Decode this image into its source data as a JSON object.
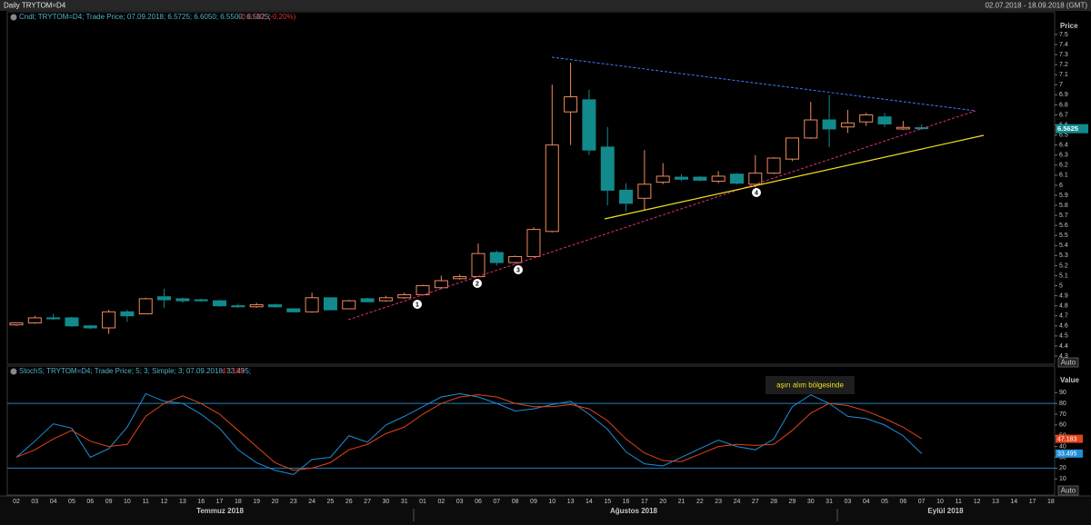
{
  "header": {
    "title": "Daily TRYTOM=D4",
    "range": "02.07.2018 - 18.09.2018 (GMT)"
  },
  "chart_data": [
    {
      "type": "candlestick",
      "legend": "Cndl; TRYTOM=D4; Trade Price; 07.09.2018; 6.5725; 6.6050; 6.5500; 6.5625;",
      "legend_change": "-0.0130; (-0.20%)",
      "y_title": "Price",
      "axis_button": "Auto",
      "months": [
        "Temmuz 2018",
        "Ağustos 2018",
        "Eylül 2018"
      ],
      "markers": [
        1,
        2,
        3,
        4
      ],
      "categories": [
        "02",
        "03",
        "04",
        "05",
        "06",
        "09",
        "10",
        "11",
        "12",
        "13",
        "16",
        "17",
        "18",
        "19",
        "20",
        "23",
        "24",
        "25",
        "26",
        "27",
        "30",
        "31",
        "01",
        "02",
        "03",
        "06",
        "07",
        "08",
        "09",
        "10",
        "13",
        "14",
        "15",
        "16",
        "17",
        "20",
        "21",
        "22",
        "23",
        "24",
        "27",
        "28",
        "29",
        "30",
        "31",
        "03",
        "04",
        "05",
        "06",
        "07",
        "10",
        "11",
        "12",
        "13",
        "14",
        "17",
        "18"
      ],
      "open": [
        4.61,
        4.63,
        4.68,
        4.68,
        4.6,
        4.58,
        4.74,
        4.72,
        4.89,
        4.87,
        4.86,
        4.85,
        4.8,
        4.79,
        4.81,
        4.77,
        4.74,
        4.88,
        4.77,
        4.87,
        4.85,
        4.88,
        4.91,
        4.98,
        5.07,
        5.09,
        5.33,
        5.23,
        5.29,
        5.54,
        6.73,
        6.85,
        6.38,
        5.95,
        5.87,
        6.03,
        6.08,
        6.08,
        6.04,
        6.11,
        6.01,
        6.12,
        6.26,
        6.47,
        6.65,
        6.58,
        6.63,
        6.68,
        6.56,
        6.5725,
        null,
        null,
        null,
        null,
        null,
        null,
        null
      ],
      "high": [
        4.63,
        4.7,
        4.72,
        4.69,
        4.61,
        4.76,
        4.76,
        4.88,
        4.97,
        4.88,
        4.87,
        4.86,
        4.82,
        4.83,
        4.82,
        4.77,
        4.93,
        4.88,
        4.86,
        4.88,
        4.9,
        4.93,
        5.01,
        5.1,
        5.11,
        5.42,
        5.35,
        5.3,
        5.58,
        7.0,
        7.22,
        6.95,
        6.58,
        6.02,
        6.35,
        6.22,
        6.11,
        6.09,
        6.14,
        6.12,
        6.3,
        6.28,
        6.47,
        6.83,
        6.9,
        6.75,
        6.72,
        6.72,
        6.64,
        6.605,
        null,
        null,
        null,
        null,
        null,
        null,
        null
      ],
      "low": [
        4.6,
        4.62,
        4.66,
        4.59,
        4.57,
        4.52,
        4.64,
        4.72,
        4.78,
        4.83,
        4.84,
        4.79,
        4.78,
        4.78,
        4.78,
        4.74,
        4.73,
        4.76,
        4.77,
        4.84,
        4.84,
        4.87,
        4.9,
        4.97,
        5.06,
        5.09,
        5.2,
        5.22,
        5.29,
        5.53,
        6.4,
        6.3,
        5.8,
        5.74,
        5.75,
        6.01,
        6.04,
        6.04,
        6.02,
        6.01,
        5.98,
        6.11,
        6.24,
        6.46,
        6.38,
        6.52,
        6.59,
        6.58,
        6.55,
        6.55,
        null,
        null,
        null,
        null,
        null,
        null,
        null
      ],
      "close": [
        4.63,
        4.68,
        4.67,
        4.6,
        4.58,
        4.74,
        4.7,
        4.87,
        4.86,
        4.85,
        4.85,
        4.8,
        4.79,
        4.81,
        4.79,
        4.74,
        4.88,
        4.76,
        4.85,
        4.84,
        4.88,
        4.91,
        5.0,
        5.05,
        5.09,
        5.32,
        5.23,
        5.29,
        5.56,
        6.4,
        6.88,
        6.35,
        5.95,
        5.82,
        6.01,
        6.09,
        6.06,
        6.05,
        6.09,
        6.02,
        6.12,
        6.27,
        6.47,
        6.65,
        6.56,
        6.62,
        6.7,
        6.61,
        6.5755,
        6.5625,
        null,
        null,
        null,
        null,
        null,
        null,
        null
      ],
      "up_color": "#f08a5d",
      "down_color": "#128a8c",
      "ylim": [
        4.25,
        7.64
      ],
      "yticks": [
        4.3,
        4.4,
        4.5,
        4.6,
        4.7,
        4.8,
        4.9,
        5,
        5.1,
        5.2,
        5.3,
        5.4,
        5.5,
        5.6,
        5.7,
        5.8,
        5.9,
        6,
        6.1,
        6.2,
        6.3,
        6.4,
        6.5,
        6.6,
        6.7,
        6.8,
        6.9,
        7,
        7.1,
        7.2,
        7.3,
        7.4,
        7.5
      ],
      "grid": false
    },
    {
      "type": "line",
      "legend": "StochS; TRYTOM=D4; Trade Price; 5; 3; Simple; 3; 07.09.2018; 33.495;",
      "legend_last": "47.183",
      "y_title": "Value",
      "axis_button": "Auto",
      "annotation": "aşırı alım bölgesinde",
      "series": [
        {
          "color": "#1f8fd8",
          "values": [
            30,
            45,
            61,
            57,
            30,
            38,
            58,
            89,
            82,
            80,
            70,
            57,
            37,
            25,
            18,
            14,
            28,
            30,
            50,
            44,
            60,
            68,
            77,
            86,
            89,
            86,
            80,
            73,
            75,
            79,
            82,
            70,
            56,
            35,
            24,
            22,
            30,
            38,
            46,
            40,
            37,
            47,
            77,
            88,
            80,
            68,
            66,
            60,
            50,
            33.495,
            null,
            null,
            null,
            null,
            null,
            null,
            null
          ]
        },
        {
          "color": "#e2431c",
          "values": [
            30,
            37,
            47,
            55,
            45,
            40,
            42,
            68,
            80,
            87,
            80,
            70,
            55,
            40,
            25,
            18,
            20,
            25,
            37,
            42,
            52,
            58,
            70,
            80,
            86,
            88,
            86,
            80,
            77,
            77,
            79,
            75,
            64,
            47,
            34,
            27,
            26,
            33,
            40,
            42,
            41,
            42,
            55,
            71,
            80,
            78,
            73,
            66,
            58,
            47.183,
            null,
            null,
            null,
            null,
            null,
            null,
            null
          ]
        }
      ],
      "levels": [
        20,
        80
      ],
      "level_color": "#1f7fbf",
      "ylim": [
        -5,
        113
      ],
      "yticks": [
        10,
        20,
        30,
        40,
        50,
        60,
        70,
        80,
        90
      ],
      "grid": false
    }
  ]
}
